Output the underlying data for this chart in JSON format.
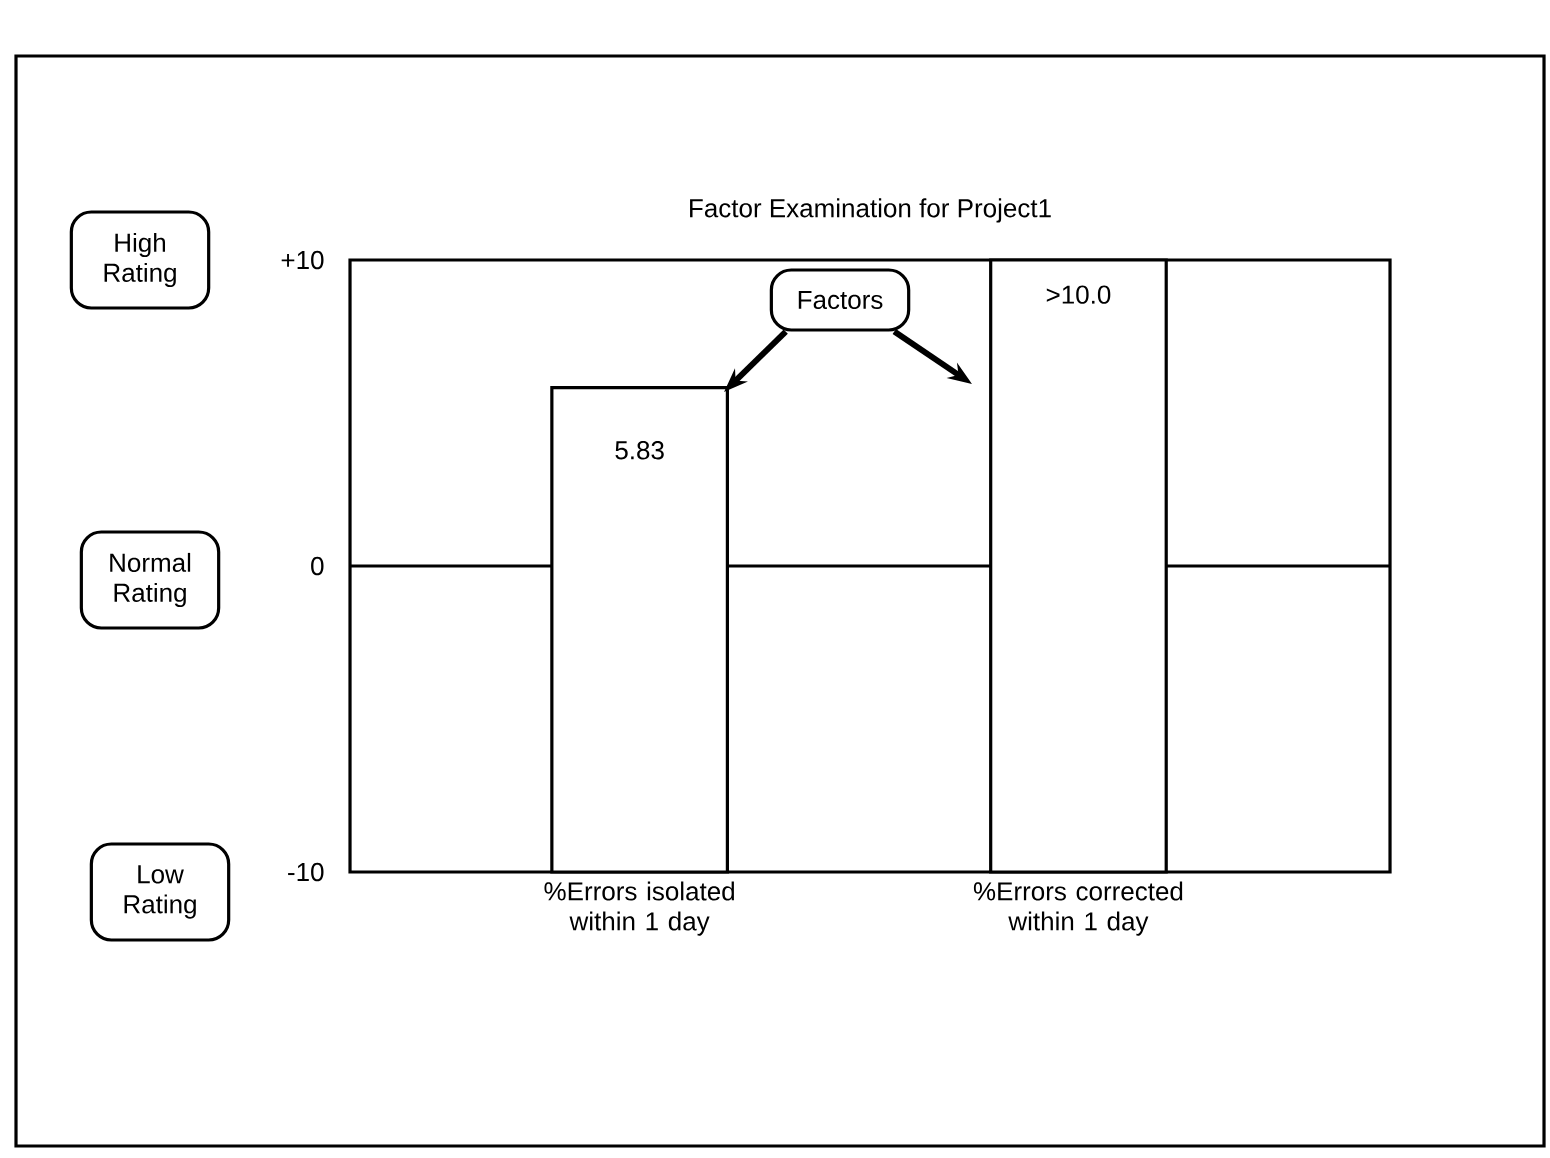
{
  "chart_data": {
    "type": "bar",
    "title": "Factor Examination for Project1",
    "categories": [
      "%Errors isolated within 1 day",
      "%Errors corrected within 1 day"
    ],
    "base": [
      -10,
      -10
    ],
    "values": [
      15.83,
      20
    ],
    "value_labels": [
      "5.83",
      ">10.0"
    ],
    "color": "#ffffff",
    "ylim": [
      -10,
      10
    ],
    "yticks": [
      {
        "value": 10,
        "label": "+10"
      },
      0,
      -10
    ],
    "ref_lines": [
      {
        "axis": "y",
        "value": 0,
        "color": "#000000"
      }
    ],
    "annotations": [
      "High Rating",
      "Normal Rating",
      "Low Rating",
      "Factors"
    ]
  }
}
